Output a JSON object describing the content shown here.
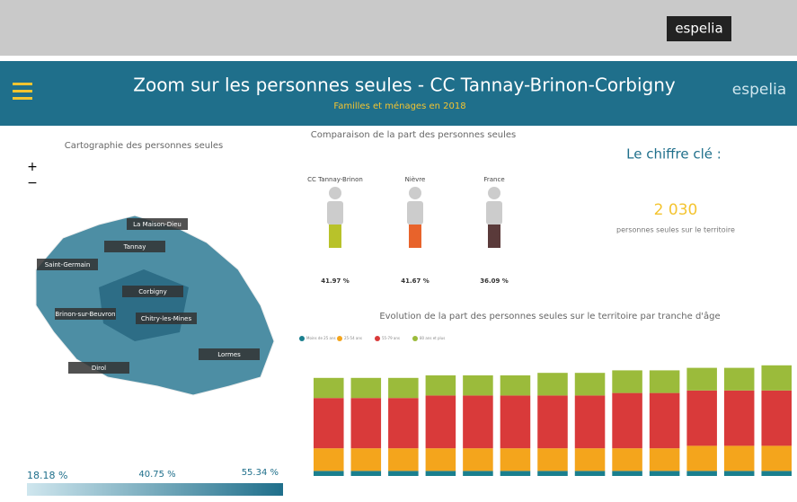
{
  "header": {
    "brand": "espelia",
    "title": "Zoom sur les personnes seules - CC Tannay-Brinon-Corbigny",
    "subtitle": "Familles et ménages en 2018",
    "logo": "espelia"
  },
  "map": {
    "title": "Cartographie des personnes seules",
    "labels": [
      "La Maison-Dieu",
      "Saint-Germain",
      "Tannay",
      "Brinon-sur-Beuvron",
      "Chitry-les-Mines",
      "Corbigny",
      "Dirol",
      "Lormes"
    ],
    "legend": [
      "18.18 %",
      "40.75 %",
      "55.34 %"
    ]
  },
  "comparison": {
    "title": "Comparaison de la part des personnes seules",
    "names": [
      "CC Tannay-Brinon",
      "Nièvre",
      "France"
    ],
    "values": [
      "41.97 %",
      "41.67 %",
      "36.09 %"
    ]
  },
  "key_figure": {
    "title": "Le chiffre clé :",
    "value": "2 030",
    "caption": "personnes seules sur le territoire"
  },
  "chart_data": {
    "type": "bar",
    "stacked": true,
    "title": "Evolution de la part des personnes seules sur le territoire par tranche d'âge",
    "categories": [
      null,
      null,
      null,
      null,
      null,
      null,
      null,
      null,
      null,
      null,
      null,
      null,
      null
    ],
    "ylim": [
      0,
      50
    ],
    "series": [
      {
        "name": "Moins de 25 ans",
        "color": "#1a7f8e",
        "values": [
          2,
          2,
          2,
          2,
          2,
          2,
          2,
          2,
          2,
          2,
          2,
          2,
          2
        ]
      },
      {
        "name": "25-54 ans",
        "color": "#f4a51c",
        "values": [
          9,
          9,
          9,
          9,
          9,
          9,
          9,
          9,
          9,
          9,
          10,
          10,
          10
        ]
      },
      {
        "name": "55-79 ans",
        "color": "#d93a3a",
        "values": [
          20,
          20,
          20,
          21,
          21,
          21,
          21,
          21,
          22,
          22,
          22,
          22,
          22
        ]
      },
      {
        "name": "80 ans et plus",
        "color": "#9bbb3b",
        "values": [
          8,
          8,
          8,
          8,
          8,
          8,
          9,
          9,
          9,
          9,
          9,
          9,
          10
        ]
      }
    ]
  }
}
